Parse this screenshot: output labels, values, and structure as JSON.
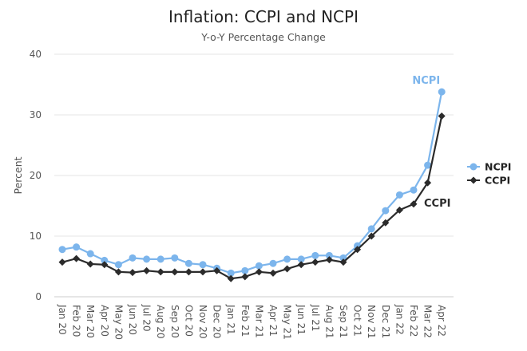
{
  "chart_data": {
    "type": "line",
    "title": "Inflation: CCPI and NCPI",
    "subtitle": "Y-o-Y Percentage Change",
    "xlabel": "",
    "ylabel": "Percent",
    "ylim": [
      0,
      40
    ],
    "yticks": [
      0,
      10,
      20,
      30,
      40
    ],
    "grid": true,
    "legend_position": "right",
    "categories": [
      "Jan 20",
      "Feb 20",
      "Mar 20",
      "Apr 20",
      "May 20",
      "Jun 20",
      "Jul 20",
      "Aug 20",
      "Sep 20",
      "Oct 20",
      "Nov 20",
      "Dec 20",
      "Jan 21",
      "Feb 21",
      "Mar 21",
      "Apr 21",
      "May 21",
      "Jun 21",
      "Jul 21",
      "Aug 21",
      "Sep 21",
      "Oct 21",
      "Nov 21",
      "Dec 21",
      "Jan 22",
      "Feb 22",
      "Mar 22",
      "Apr 22"
    ],
    "series": [
      {
        "name": "NCPI",
        "color": "#7cb5ec",
        "marker": "circle",
        "values": [
          7.8,
          8.2,
          7.1,
          6.0,
          5.3,
          6.4,
          6.2,
          6.2,
          6.4,
          5.5,
          5.3,
          4.7,
          3.9,
          4.3,
          5.1,
          5.5,
          6.2,
          6.2,
          6.8,
          6.8,
          6.4,
          8.4,
          11.2,
          14.2,
          16.8,
          17.6,
          21.7,
          33.8
        ]
      },
      {
        "name": "CCPI",
        "color": "#2b2b2b",
        "marker": "diamond",
        "values": [
          5.7,
          6.3,
          5.4,
          5.3,
          4.1,
          4.0,
          4.3,
          4.1,
          4.1,
          4.1,
          4.1,
          4.3,
          3.0,
          3.3,
          4.1,
          3.9,
          4.6,
          5.3,
          5.7,
          6.1,
          5.7,
          7.8,
          10.0,
          12.2,
          14.3,
          15.3,
          18.8,
          29.8
        ]
      }
    ],
    "annotations": [
      {
        "text": "NCPI",
        "series": "NCPI"
      },
      {
        "text": "CCPI",
        "series": "CCPI"
      }
    ]
  }
}
